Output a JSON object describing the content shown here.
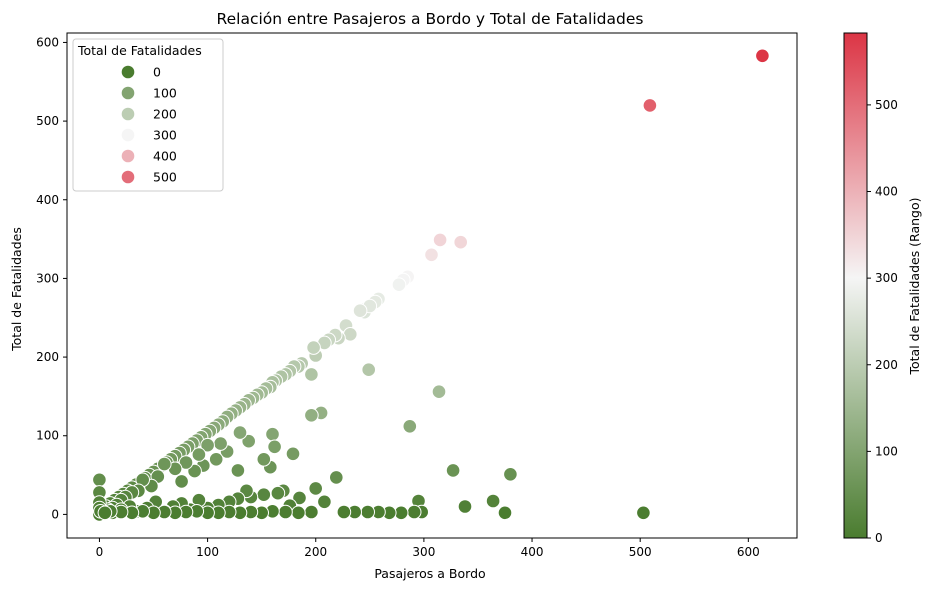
{
  "chart_data": {
    "type": "scatter",
    "title": "Relación entre Pasajeros a Bordo y Total de Fatalidades",
    "xlabel": "Pasajeros a Bordo",
    "ylabel": "Total de Fatalidades",
    "xlim": [
      -30,
      645
    ],
    "ylim": [
      -30,
      612
    ],
    "xticks": [
      0,
      100,
      200,
      300,
      400,
      500,
      600
    ],
    "yticks": [
      0,
      100,
      200,
      300,
      400,
      500,
      600
    ],
    "grid": false,
    "legend": {
      "title": "Total de Fatalidades",
      "placement": "top-left",
      "entries": [
        {
          "label": "0",
          "value": 0
        },
        {
          "label": "100",
          "value": 100
        },
        {
          "label": "200",
          "value": 200
        },
        {
          "label": "300",
          "value": 300
        },
        {
          "label": "400",
          "value": 400
        },
        {
          "label": "500",
          "value": 500
        }
      ]
    },
    "colorbar": {
      "label": "Total de Fatalidades (Rango)",
      "range": [
        0,
        583
      ],
      "ticks": [
        0,
        100,
        200,
        300,
        400,
        500
      ],
      "low_color": "#4a7c2f",
      "mid_color": "#f5f5f5",
      "high_color": "#dc3545"
    },
    "points": [
      [
        613,
        583
      ],
      [
        509,
        520
      ],
      [
        315,
        349
      ],
      [
        334,
        346
      ],
      [
        307,
        330
      ],
      [
        285,
        302
      ],
      [
        281,
        298
      ],
      [
        277,
        292
      ],
      [
        258,
        274
      ],
      [
        255,
        270
      ],
      [
        247,
        262
      ],
      [
        245,
        257
      ],
      [
        250,
        265
      ],
      [
        241,
        259
      ],
      [
        228,
        240
      ],
      [
        232,
        229
      ],
      [
        221,
        224
      ],
      [
        218,
        228
      ],
      [
        212,
        222
      ],
      [
        208,
        218
      ],
      [
        200,
        202
      ],
      [
        198,
        212
      ],
      [
        196,
        178
      ],
      [
        187,
        192
      ],
      [
        184,
        188
      ],
      [
        180,
        188
      ],
      [
        176,
        182
      ],
      [
        172,
        178
      ],
      [
        168,
        175
      ],
      [
        163,
        170
      ],
      [
        160,
        168
      ],
      [
        158,
        162
      ],
      [
        154,
        160
      ],
      [
        150,
        155
      ],
      [
        146,
        152
      ],
      [
        142,
        148
      ],
      [
        138,
        145
      ],
      [
        134,
        140
      ],
      [
        130,
        136
      ],
      [
        126,
        132
      ],
      [
        122,
        128
      ],
      [
        118,
        124
      ],
      [
        114,
        118
      ],
      [
        110,
        114
      ],
      [
        106,
        110
      ],
      [
        102,
        106
      ],
      [
        98,
        102
      ],
      [
        94,
        98
      ],
      [
        90,
        94
      ],
      [
        86,
        90
      ],
      [
        82,
        86
      ],
      [
        78,
        82
      ],
      [
        74,
        78
      ],
      [
        70,
        74
      ],
      [
        66,
        70
      ],
      [
        62,
        66
      ],
      [
        58,
        62
      ],
      [
        54,
        58
      ],
      [
        50,
        54
      ],
      [
        46,
        50
      ],
      [
        42,
        46
      ],
      [
        38,
        42
      ],
      [
        34,
        38
      ],
      [
        30,
        34
      ],
      [
        26,
        30
      ],
      [
        22,
        26
      ],
      [
        18,
        22
      ],
      [
        14,
        18
      ],
      [
        10,
        14
      ],
      [
        6,
        10
      ],
      [
        3,
        6
      ],
      [
        249,
        184
      ],
      [
        314,
        156
      ],
      [
        287,
        112
      ],
      [
        205,
        129
      ],
      [
        196,
        126
      ],
      [
        179,
        77
      ],
      [
        160,
        102
      ],
      [
        162,
        86
      ],
      [
        158,
        60
      ],
      [
        152,
        70
      ],
      [
        138,
        93
      ],
      [
        130,
        104
      ],
      [
        128,
        56
      ],
      [
        118,
        80
      ],
      [
        112,
        90
      ],
      [
        108,
        70
      ],
      [
        100,
        88
      ],
      [
        96,
        62
      ],
      [
        92,
        76
      ],
      [
        88,
        55
      ],
      [
        80,
        66
      ],
      [
        76,
        42
      ],
      [
        70,
        58
      ],
      [
        60,
        64
      ],
      [
        54,
        48
      ],
      [
        48,
        36
      ],
      [
        40,
        44
      ],
      [
        36,
        30
      ],
      [
        30,
        28
      ],
      [
        24,
        22
      ],
      [
        20,
        18
      ],
      [
        16,
        12
      ],
      [
        12,
        8
      ],
      [
        8,
        6
      ],
      [
        4,
        4
      ],
      [
        2,
        2
      ],
      [
        0,
        0
      ],
      [
        0,
        44
      ],
      [
        0,
        28
      ],
      [
        0,
        15
      ],
      [
        0,
        8
      ],
      [
        1,
        4
      ],
      [
        380,
        51
      ],
      [
        327,
        56
      ],
      [
        364,
        17
      ],
      [
        338,
        10
      ],
      [
        295,
        17
      ],
      [
        219,
        47
      ],
      [
        200,
        33
      ],
      [
        208,
        16
      ],
      [
        185,
        21
      ],
      [
        176,
        11
      ],
      [
        170,
        30
      ],
      [
        165,
        27
      ],
      [
        152,
        25
      ],
      [
        140,
        22
      ],
      [
        136,
        30
      ],
      [
        128,
        20
      ],
      [
        120,
        16
      ],
      [
        110,
        12
      ],
      [
        100,
        8
      ],
      [
        92,
        18
      ],
      [
        84,
        6
      ],
      [
        76,
        14
      ],
      [
        68,
        10
      ],
      [
        60,
        4
      ],
      [
        52,
        16
      ],
      [
        44,
        8
      ],
      [
        36,
        4
      ],
      [
        28,
        10
      ],
      [
        20,
        6
      ],
      [
        12,
        2
      ],
      [
        503,
        2
      ],
      [
        375,
        2
      ],
      [
        298,
        3
      ],
      [
        291,
        3
      ],
      [
        279,
        2
      ],
      [
        268,
        2
      ],
      [
        258,
        3
      ],
      [
        248,
        3
      ],
      [
        236,
        3
      ],
      [
        226,
        3
      ],
      [
        196,
        3
      ],
      [
        184,
        2
      ],
      [
        172,
        3
      ],
      [
        160,
        4
      ],
      [
        150,
        2
      ],
      [
        140,
        3
      ],
      [
        130,
        2
      ],
      [
        120,
        3
      ],
      [
        110,
        2
      ],
      [
        100,
        2
      ],
      [
        90,
        4
      ],
      [
        80,
        3
      ],
      [
        70,
        2
      ],
      [
        60,
        3
      ],
      [
        50,
        2
      ],
      [
        40,
        4
      ],
      [
        30,
        2
      ],
      [
        20,
        3
      ],
      [
        10,
        4
      ],
      [
        5,
        2
      ]
    ]
  }
}
